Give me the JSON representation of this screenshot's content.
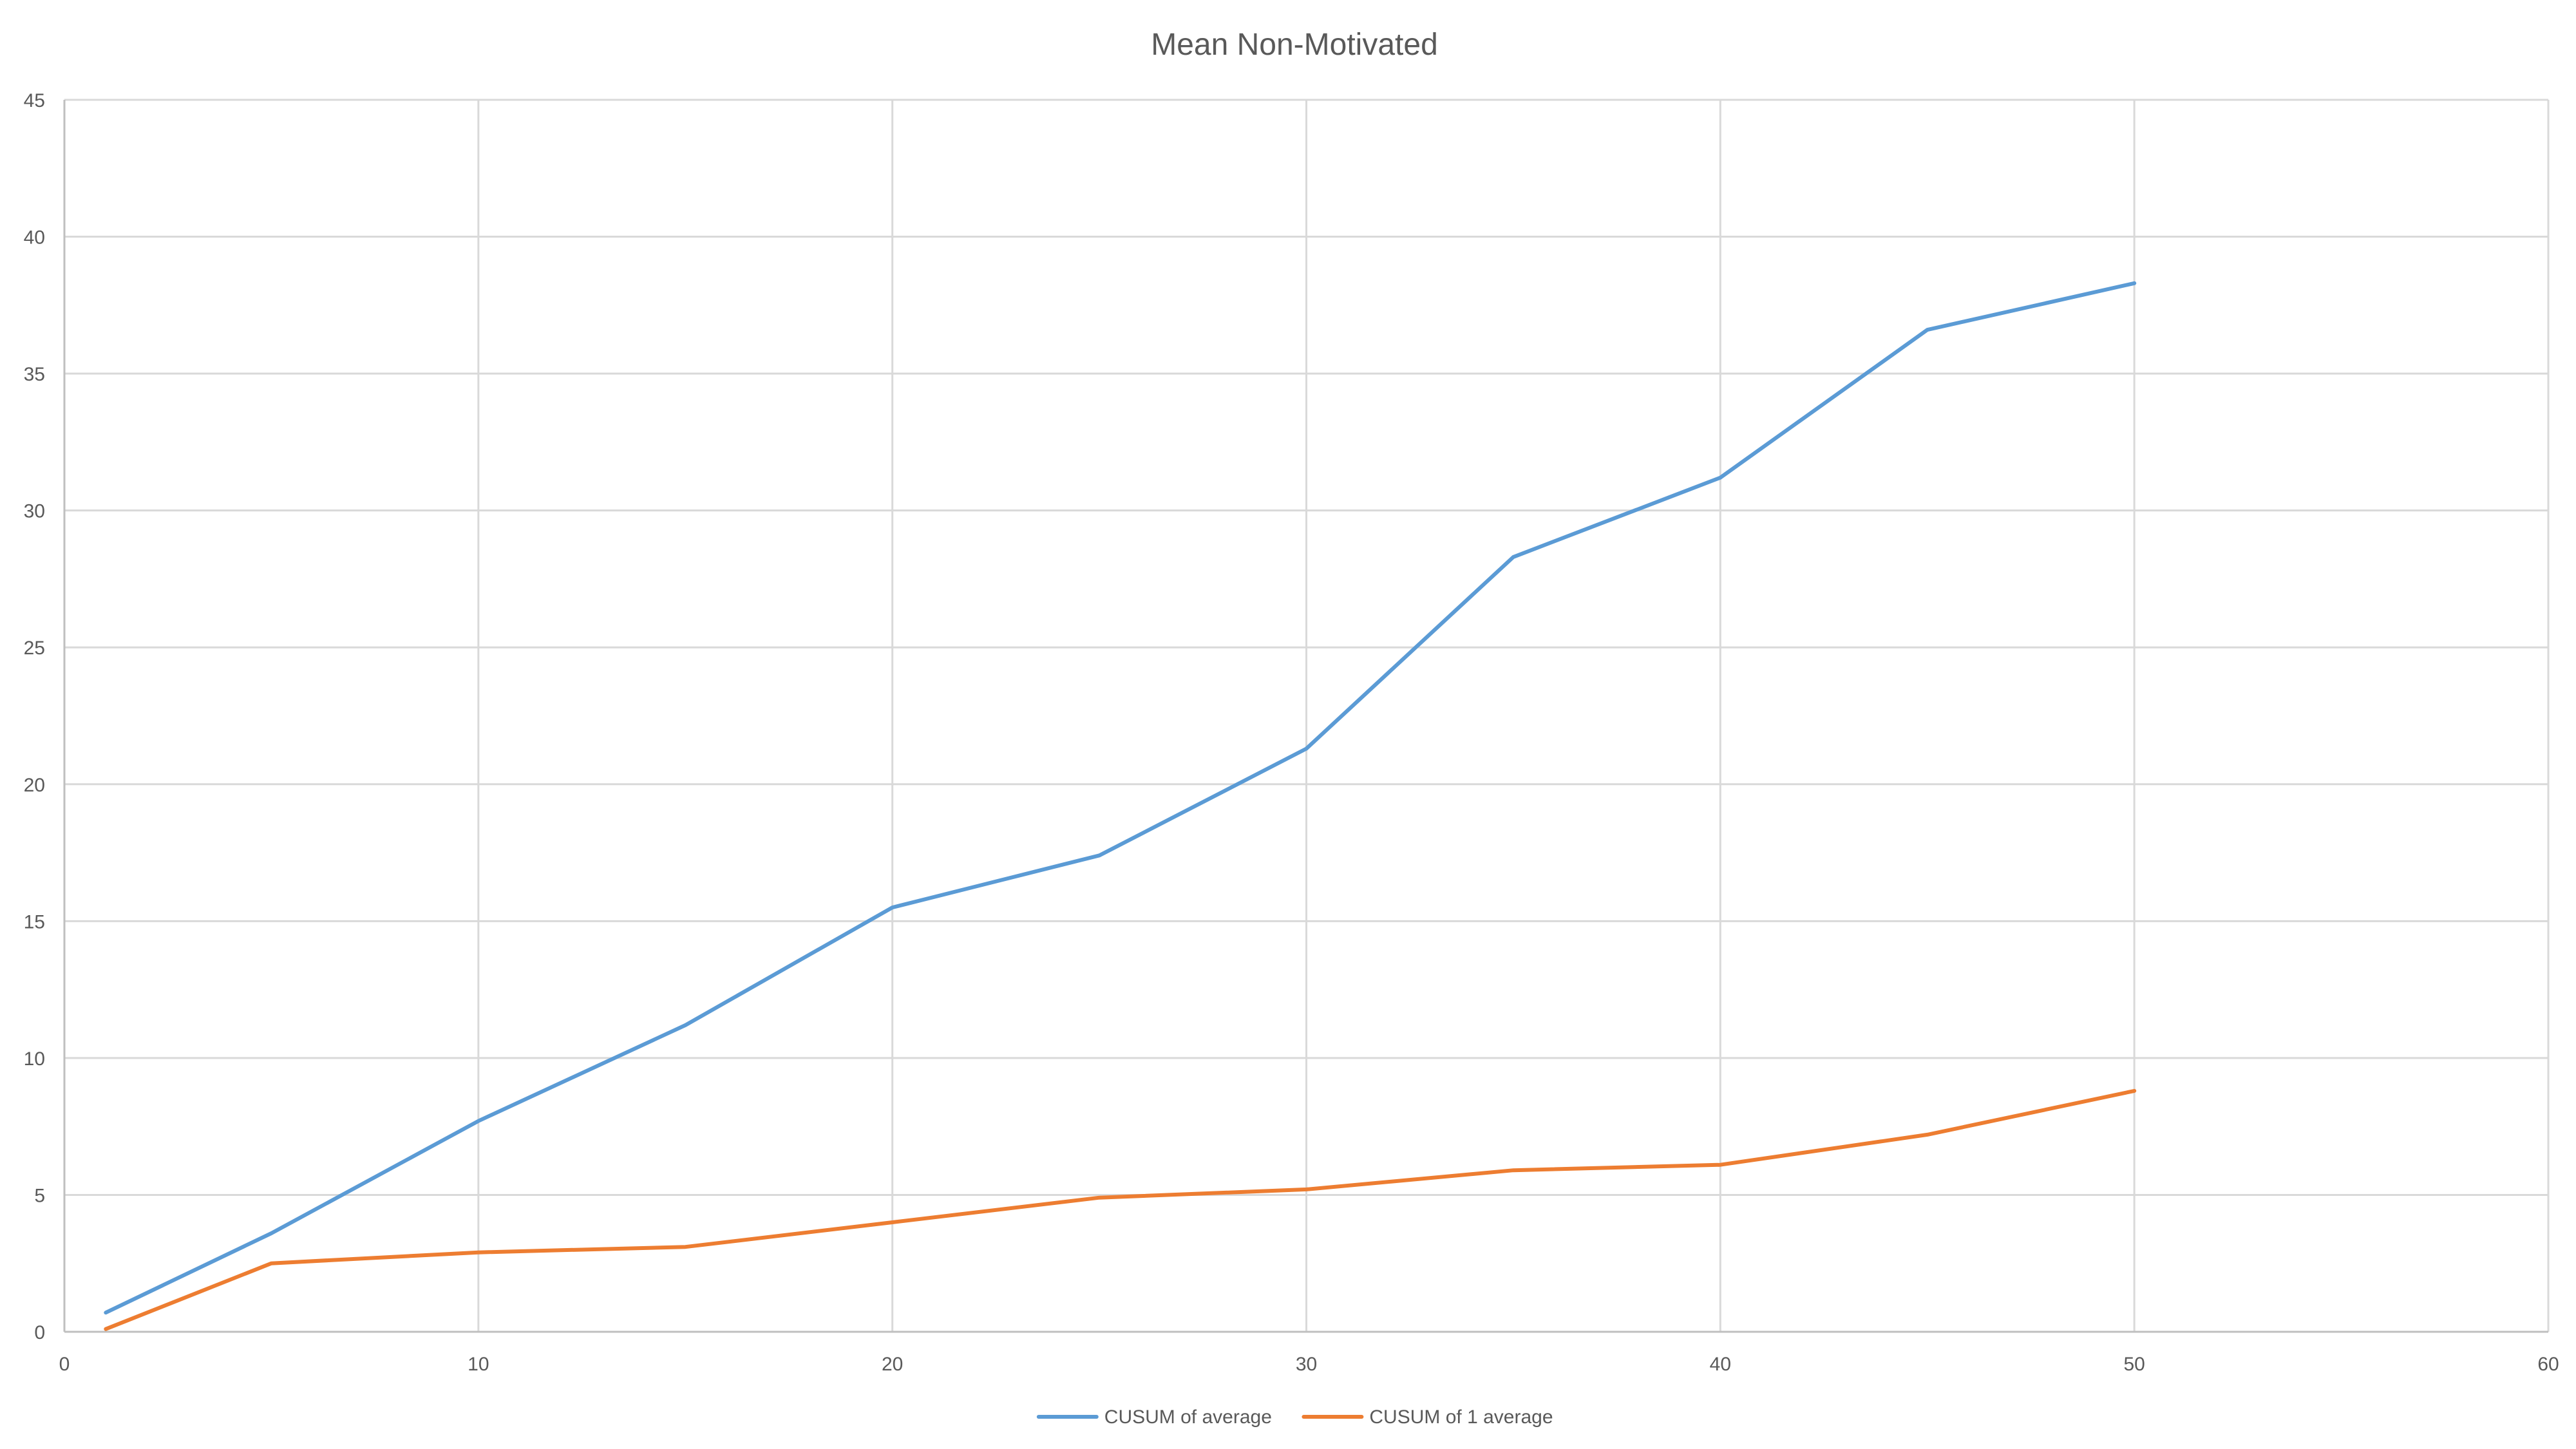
{
  "chart_data": {
    "type": "line",
    "title": "Mean Non-Motivated",
    "xlabel": "",
    "ylabel": "",
    "xlim": [
      0,
      60
    ],
    "ylim": [
      0,
      45
    ],
    "x_ticks": [
      0,
      10,
      20,
      30,
      40,
      50,
      60
    ],
    "y_ticks": [
      0,
      5,
      10,
      15,
      20,
      25,
      30,
      35,
      40,
      45
    ],
    "grid": true,
    "legend_position": "bottom",
    "series": [
      {
        "name": "CUSUM of average",
        "color": "#5b9bd5",
        "points": [
          {
            "x": 1,
            "y": 0.7
          },
          {
            "x": 5,
            "y": 3.6
          },
          {
            "x": 10,
            "y": 7.7
          },
          {
            "x": 15,
            "y": 11.2
          },
          {
            "x": 20,
            "y": 15.5
          },
          {
            "x": 25,
            "y": 17.4
          },
          {
            "x": 30,
            "y": 21.3
          },
          {
            "x": 35,
            "y": 28.3
          },
          {
            "x": 40,
            "y": 31.2
          },
          {
            "x": 45,
            "y": 36.6
          },
          {
            "x": 50,
            "y": 38.3
          }
        ]
      },
      {
        "name": "CUSUM of 1 average",
        "color": "#ed7d31",
        "points": [
          {
            "x": 1,
            "y": 0.1
          },
          {
            "x": 5,
            "y": 2.5
          },
          {
            "x": 10,
            "y": 2.9
          },
          {
            "x": 15,
            "y": 3.1
          },
          {
            "x": 20,
            "y": 4.0
          },
          {
            "x": 25,
            "y": 4.9
          },
          {
            "x": 30,
            "y": 5.2
          },
          {
            "x": 35,
            "y": 5.9
          },
          {
            "x": 40,
            "y": 6.1
          },
          {
            "x": 45,
            "y": 7.2
          },
          {
            "x": 50,
            "y": 8.8
          }
        ]
      }
    ]
  }
}
